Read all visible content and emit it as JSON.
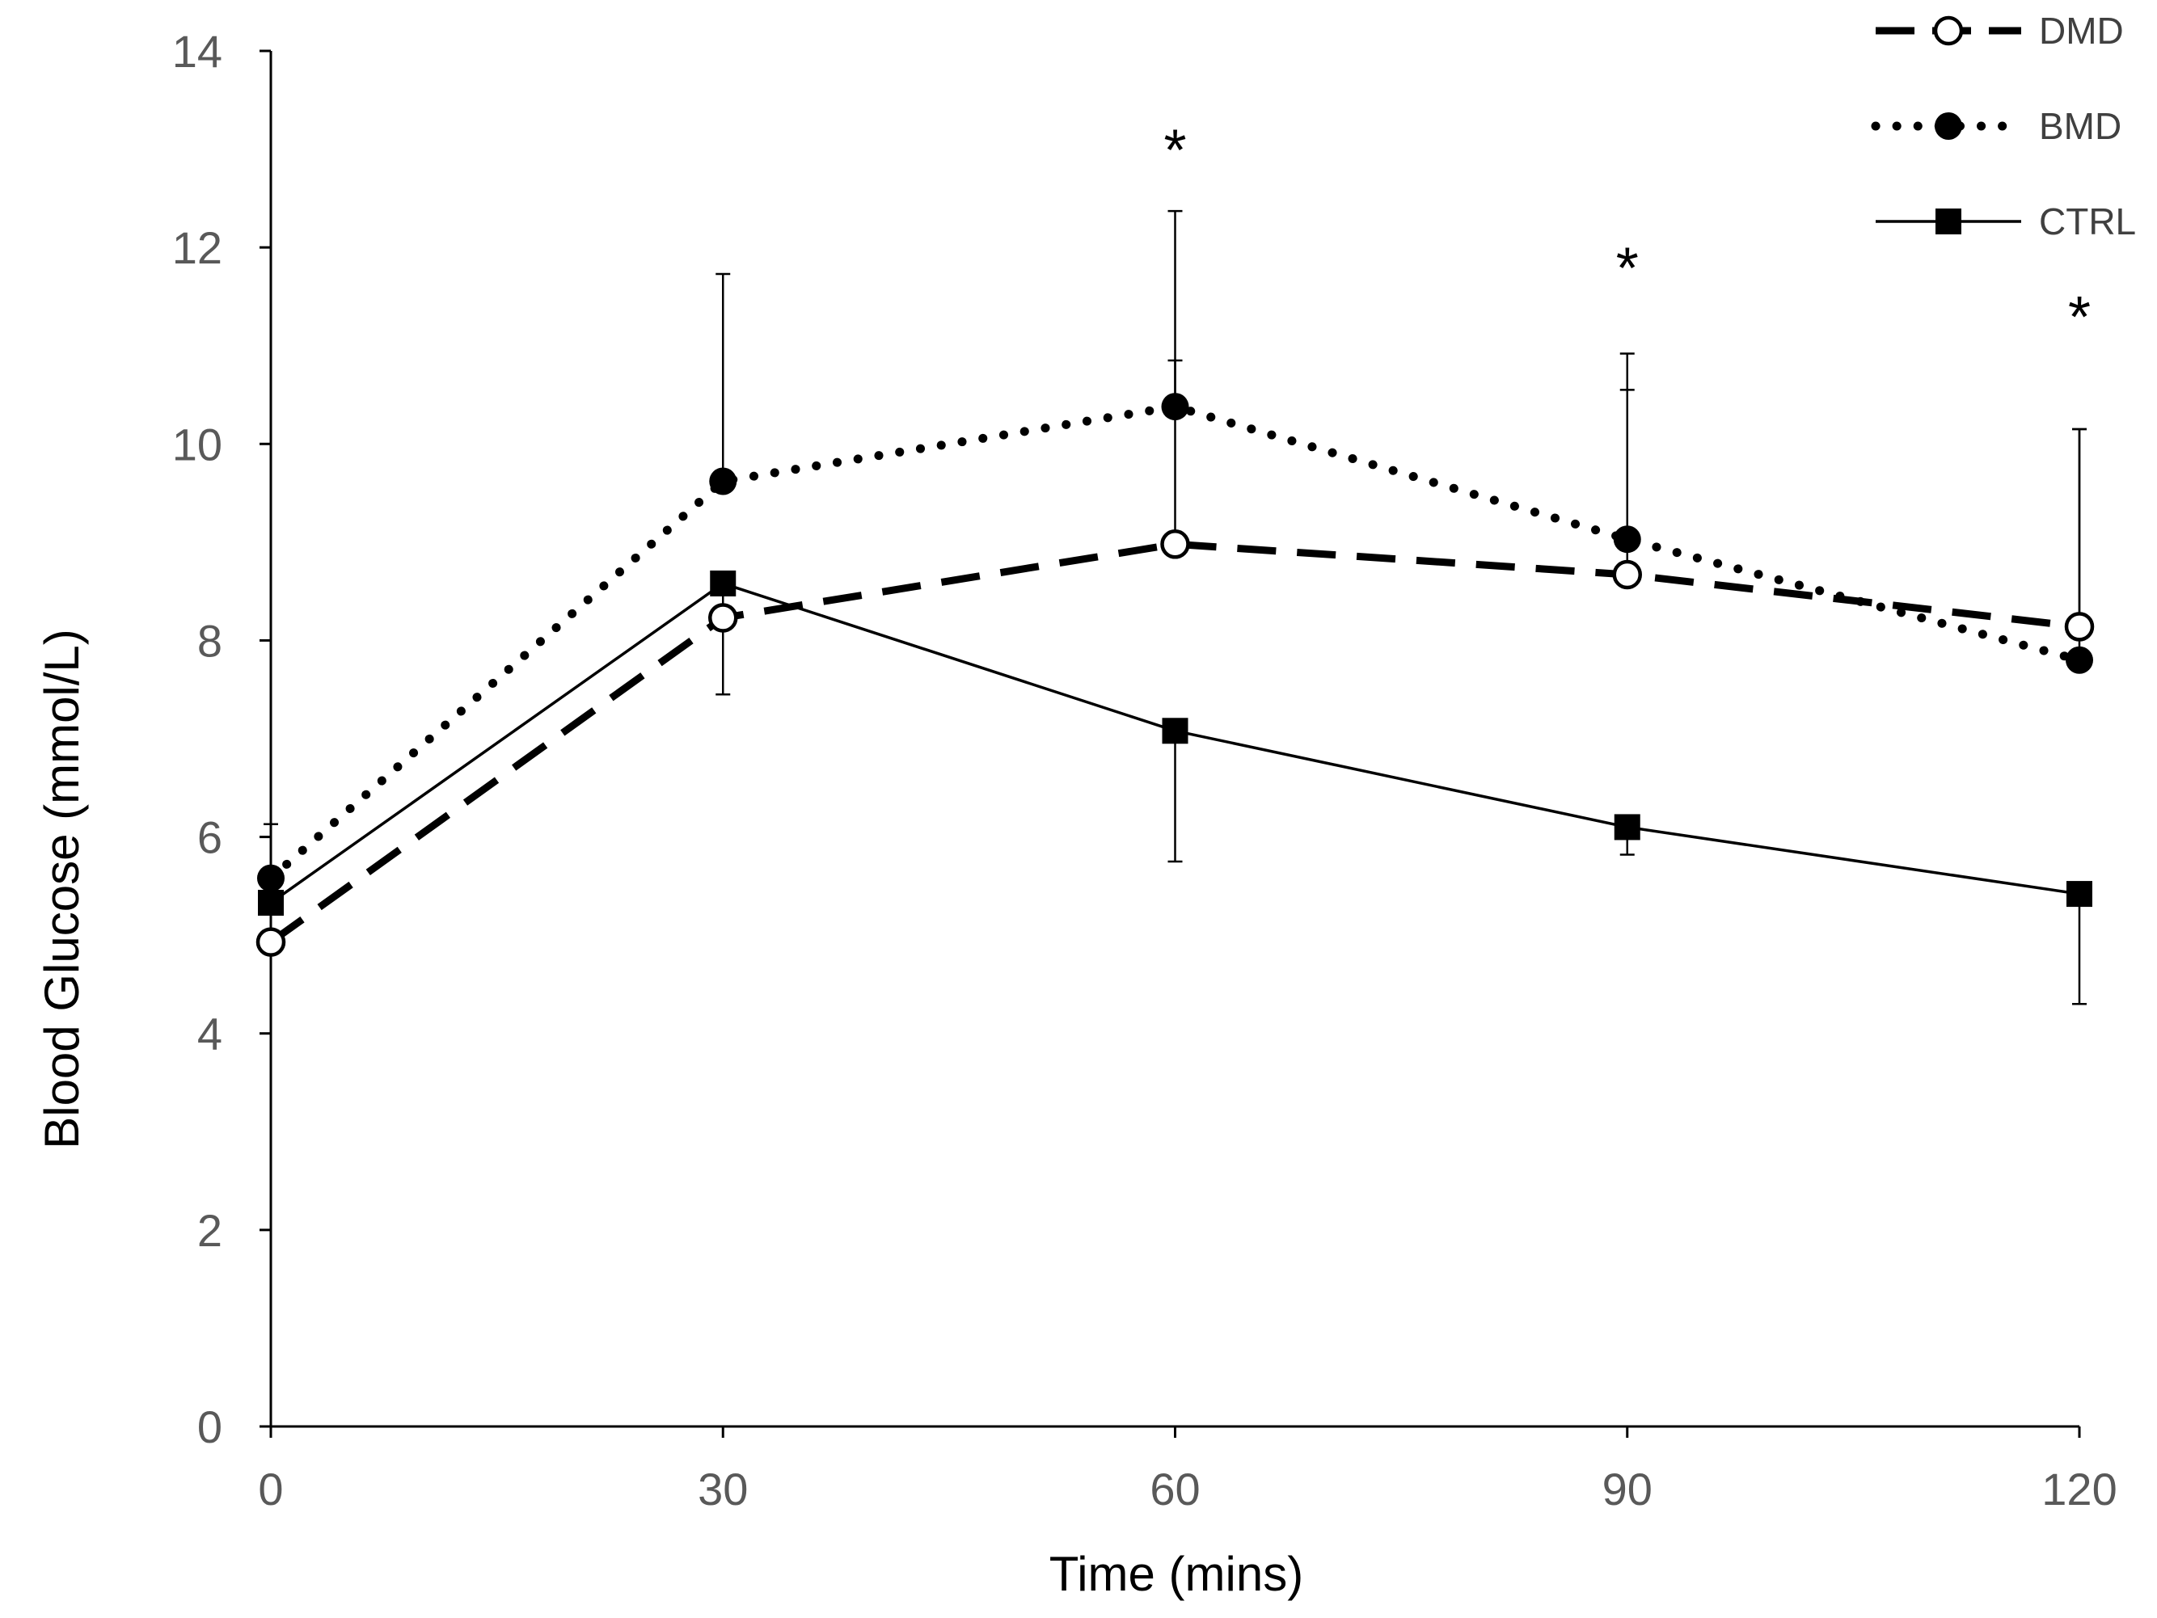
{
  "chart_data": {
    "type": "line",
    "title": "",
    "xlabel": "Time (mins)",
    "ylabel": "Blood Glucose (mmol/L)",
    "x": [
      0,
      30,
      60,
      90,
      120
    ],
    "x_ticks": [
      "0",
      "30",
      "60",
      "90",
      "120"
    ],
    "y_ticks": [
      "0",
      "2",
      "4",
      "6",
      "8",
      "10",
      "12",
      "14"
    ],
    "xlim": [
      0,
      120
    ],
    "ylim": [
      0,
      14
    ],
    "grid": false,
    "legend_position": "top-right",
    "series": [
      {
        "name": "DMD",
        "style": "dashed",
        "marker": "open-circle",
        "values": [
          4.93,
          8.23,
          8.98,
          8.67,
          8.14
        ],
        "error_upper": [
          null,
          null,
          10.85,
          10.55,
          10.15
        ]
      },
      {
        "name": "BMD",
        "style": "dotted",
        "marker": "filled-circle",
        "values": [
          5.58,
          9.62,
          10.38,
          9.03,
          7.8
        ],
        "error_upper": [
          6.13,
          11.73,
          12.37,
          10.92,
          10.15
        ]
      },
      {
        "name": "CTRL",
        "style": "solid",
        "marker": "filled-square",
        "values": [
          5.33,
          8.58,
          7.08,
          6.1,
          5.42
        ],
        "error_lower": [
          null,
          7.45,
          5.75,
          5.82,
          4.3
        ]
      }
    ],
    "annotations": [
      {
        "x": 60,
        "y": 13.0,
        "text": "*"
      },
      {
        "x": 90,
        "y": 11.8,
        "text": "*"
      },
      {
        "x": 120,
        "y": 11.3,
        "text": "*"
      }
    ]
  }
}
